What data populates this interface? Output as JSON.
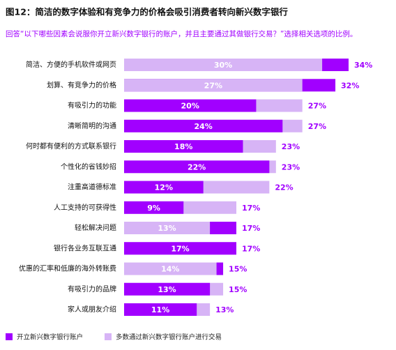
{
  "chart_data": {
    "type": "bar",
    "orientation": "horizontal",
    "overlap": true,
    "title": "图12：简洁的数字体验和有竞争力的价格会吸引消费者转向新兴数字银行",
    "subtitle": "回答“以下哪些因素会说服你开立新兴数字银行的账户，并且主要通过其做银行交易？”选择相关选项的比例。",
    "categories": [
      "简洁、方便的手机软件或网页",
      "划算、有竞争力的价格",
      "有吸引力的功能",
      "清晰简明的沟通",
      "何时都有便利的方式联系银行",
      "个性化的省钱妙招",
      "注重高道德标准",
      "人工支持的可获得性",
      "轻松解决问题",
      "银行各业务互联互通",
      "优惠的汇率和低廉的海外转账费",
      "有吸引力的品牌",
      "家人或朋友介绍"
    ],
    "series": [
      {
        "name": "开立新兴数字银行账户",
        "color": "#a100ff",
        "values": [
          34,
          32,
          20,
          24,
          18,
          22,
          12,
          9,
          17,
          17,
          15,
          13,
          11
        ],
        "value_labels": [
          "34%",
          "32%",
          "20%",
          "24%",
          "18%",
          "22%",
          "12%",
          "9%",
          "17%",
          "17%",
          "15%",
          "13%",
          "11%"
        ]
      },
      {
        "name": "多数通过新兴数字银行账户进行交易",
        "color": "#d7b4f6",
        "values": [
          30,
          27,
          27,
          27,
          23,
          23,
          22,
          17,
          13,
          17,
          14,
          15,
          13
        ],
        "value_labels": [
          "30%",
          "27%",
          "27%",
          "27%",
          "23%",
          "23%",
          "22%",
          "17%",
          "13%",
          "17%",
          "14%",
          "15%",
          "13%"
        ]
      }
    ],
    "legend": "bottom-left"
  }
}
